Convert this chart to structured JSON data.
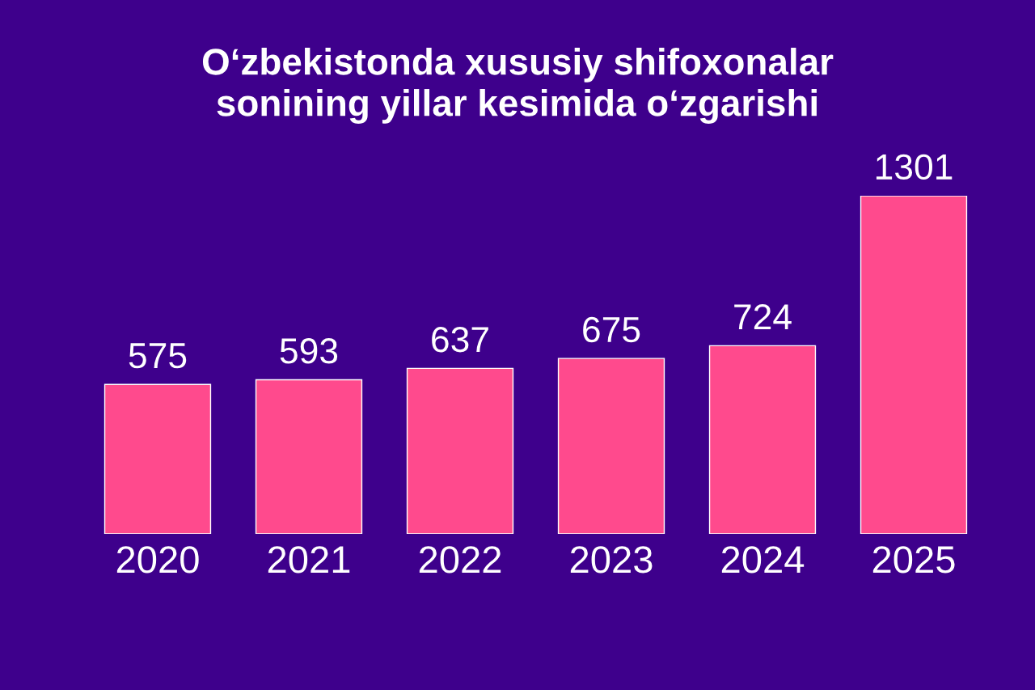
{
  "chart_data": {
    "type": "bar",
    "title": "O‘zbekistonda xususiy shifoxonalar\nsonining yillar kesimida o‘zgarishi",
    "categories": [
      "2020",
      "2021",
      "2022",
      "2023",
      "2024",
      "2025"
    ],
    "values": [
      575,
      593,
      637,
      675,
      724,
      1301
    ],
    "color": "#ff4a8d",
    "data_labels": true
  }
}
